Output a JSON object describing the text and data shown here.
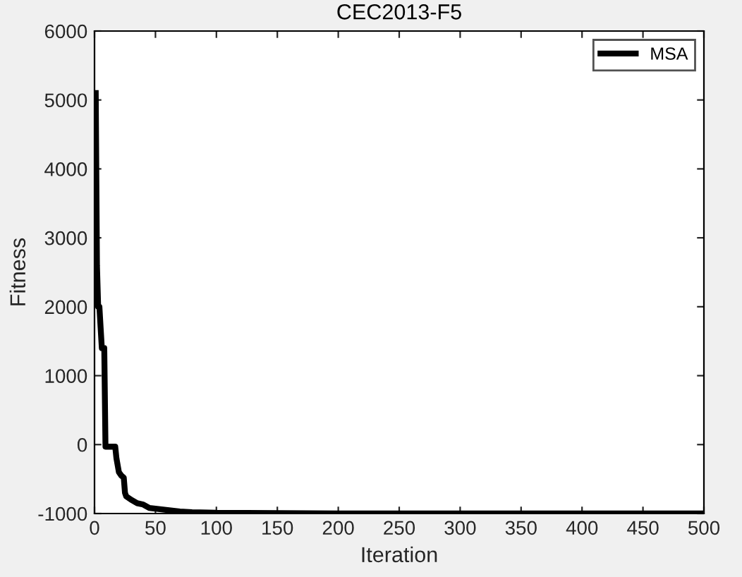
{
  "chart_data": {
    "type": "line",
    "title": "CEC2013-F5",
    "xlabel": "Iteration",
    "ylabel": "Fitness",
    "series": [
      {
        "name": "MSA",
        "color": "#000000",
        "x": [
          1,
          2,
          3,
          4,
          5,
          6,
          7,
          8,
          9,
          10,
          15,
          17,
          18,
          20,
          22,
          24,
          25,
          26,
          30,
          35,
          40,
          45,
          50,
          60,
          70,
          80,
          100,
          150,
          200,
          300,
          400,
          500
        ],
        "values": [
          5100,
          2600,
          2000,
          2000,
          1700,
          1400,
          1400,
          1400,
          -30,
          -30,
          -30,
          -30,
          -200,
          -400,
          -450,
          -480,
          -700,
          -750,
          -800,
          -850,
          -870,
          -920,
          -930,
          -950,
          -970,
          -980,
          -990,
          -995,
          -1000,
          -1000,
          -1000,
          -1000
        ]
      }
    ],
    "xlim": [
      0,
      500
    ],
    "ylim": [
      -1000,
      6000
    ],
    "xticks": [
      0,
      50,
      100,
      150,
      200,
      250,
      300,
      350,
      400,
      450,
      500
    ],
    "yticks": [
      -1000,
      0,
      1000,
      2000,
      3000,
      4000,
      5000,
      6000
    ],
    "legend": "top right",
    "grid": false,
    "line_style": "solid",
    "marker": "none"
  }
}
